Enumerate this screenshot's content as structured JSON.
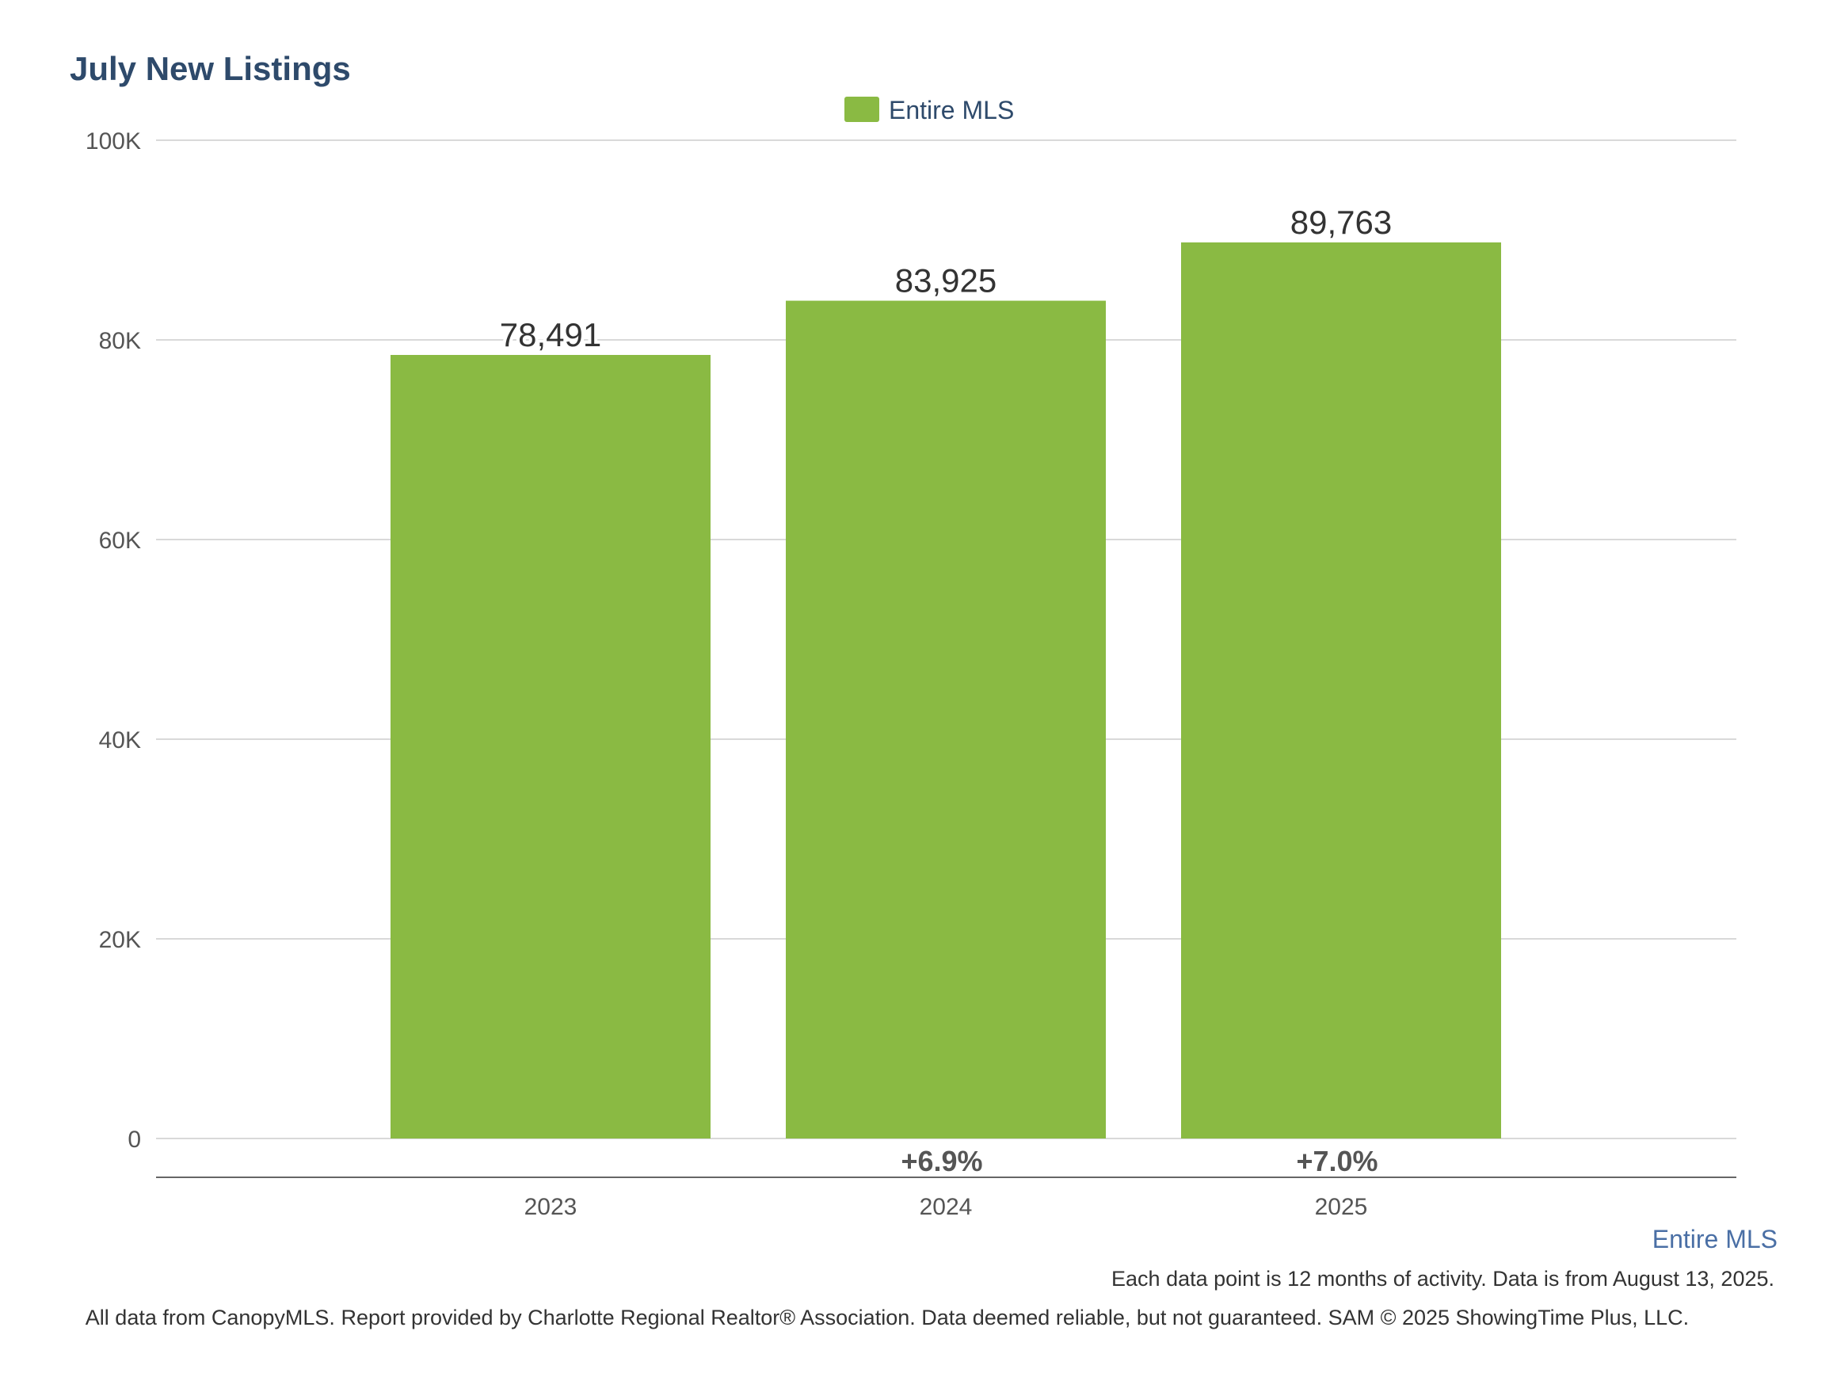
{
  "chart_data": {
    "type": "bar",
    "title": "July New Listings",
    "legend": [
      {
        "name": "Entire MLS",
        "color": "#8aba43"
      }
    ],
    "legend_position": "top-center",
    "categories": [
      "2023",
      "2024",
      "2025"
    ],
    "series": [
      {
        "name": "Entire MLS",
        "values": [
          78491,
          83925,
          89763
        ],
        "color": "#8aba43"
      }
    ],
    "data_labels": [
      "78,491",
      "83,925",
      "89,763"
    ],
    "change_labels": [
      "",
      "+6.9%",
      "+7.0%"
    ],
    "ylim": [
      0,
      100000
    ],
    "y_ticks": [
      0,
      20000,
      40000,
      60000,
      80000,
      100000
    ],
    "y_tick_labels": [
      "0",
      "20K",
      "40K",
      "60K",
      "80K",
      "100K"
    ],
    "xlabel": "",
    "ylabel": "",
    "grid": true
  },
  "footer": {
    "series_label": "Entire MLS",
    "note": "Each data point is 12 months of activity. Data is from August 13, 2025.",
    "credits": "All data from CanopyMLS. Report provided by Charlotte Regional Realtor® Association. Data deemed reliable, but not guaranteed. SAM © 2025 ShowingTime Plus, LLC."
  },
  "colors": {
    "title": "#2e4a6b",
    "legend_text": "#2e4a6b",
    "series_footer": "#4a6fa5",
    "tick_text": "#555555",
    "label_text": "#333333",
    "change_text": "#555555",
    "grid": "#d9d9d9",
    "axis_line": "#666666",
    "footer_text": "#333333"
  }
}
